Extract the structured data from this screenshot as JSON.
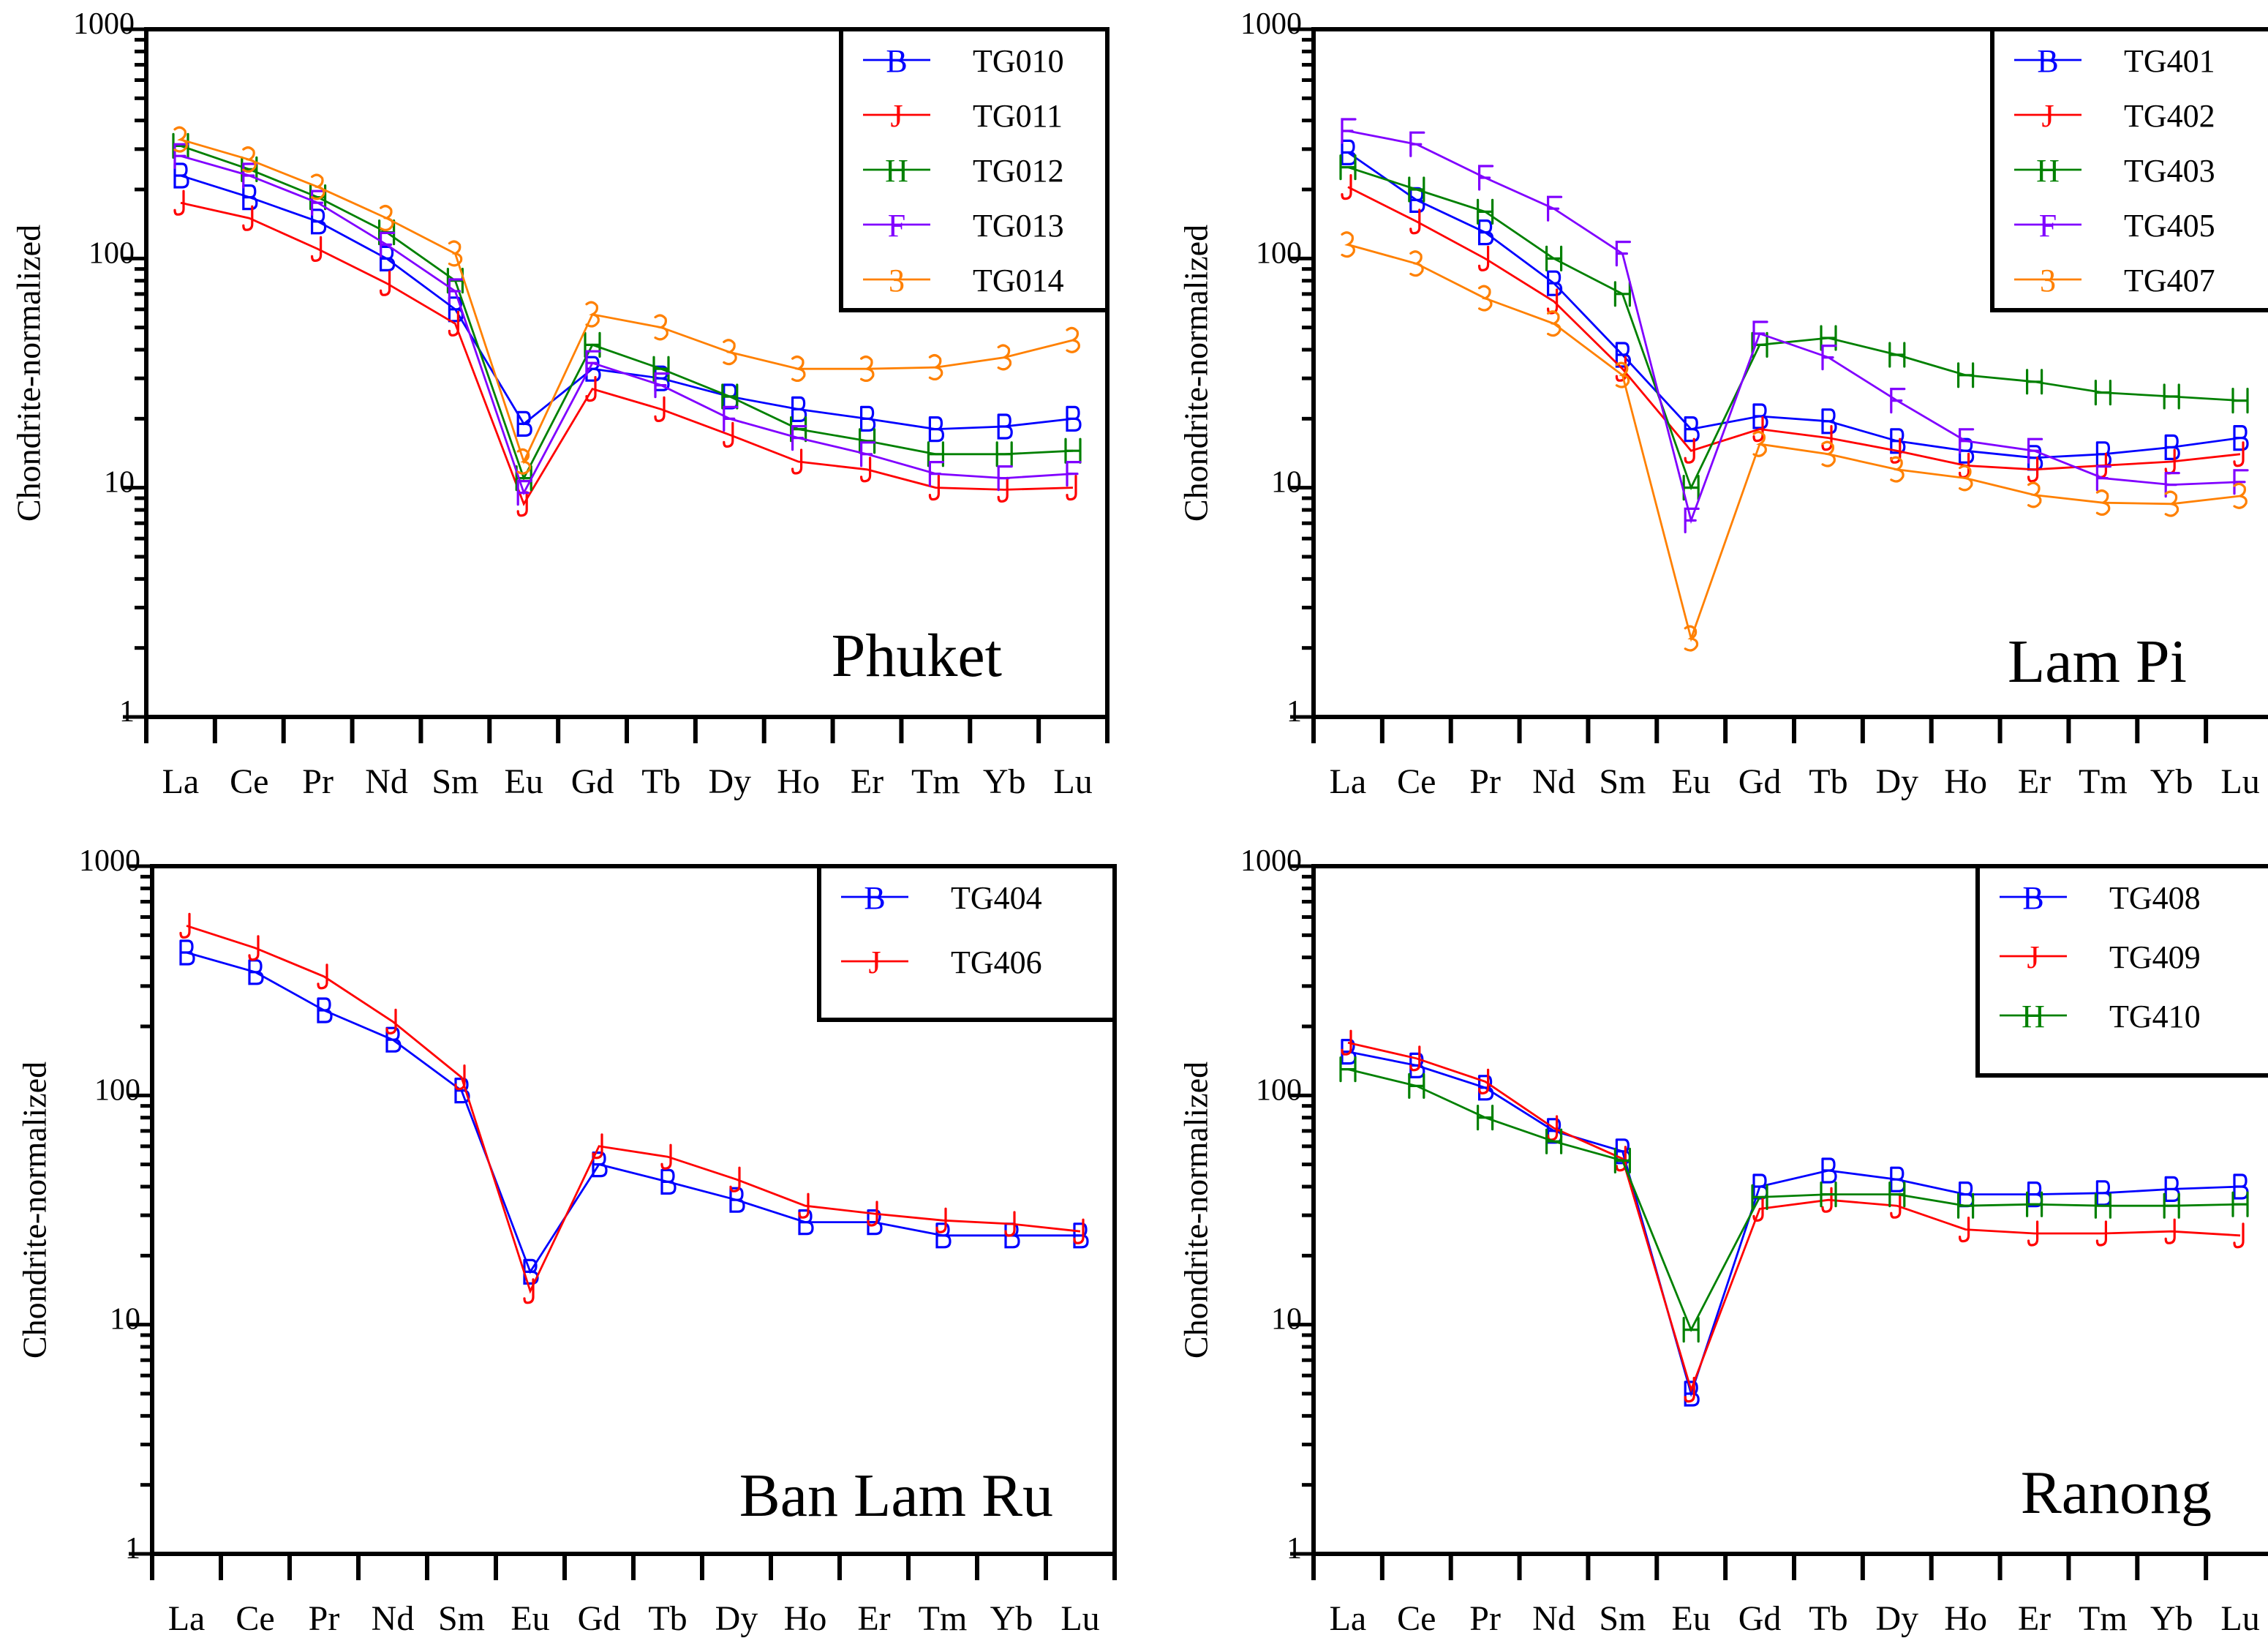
{
  "chart_data": [
    {
      "type": "line",
      "title": "Phuket",
      "ylabel": "Chondrite-normalized",
      "xlabel": "",
      "yscale": "log",
      "ylim": [
        1,
        1000
      ],
      "yticks": [
        "1",
        "10",
        "100",
        "1000"
      ],
      "legend_position": "top-right",
      "categories": [
        "La",
        "Ce",
        "Pr",
        "Nd",
        "Sm",
        "Eu",
        "Gd",
        "Tb",
        "Dy",
        "Ho",
        "Er",
        "Tm",
        "Yb",
        "Lu"
      ],
      "series": [
        {
          "name": "TG010",
          "marker": "B",
          "color": "#0000ff",
          "values": [
            230,
            185,
            145,
            100,
            60,
            19,
            33,
            30,
            25,
            22,
            20,
            18,
            18.5,
            20
          ]
        },
        {
          "name": "TG011",
          "marker": "J",
          "color": "#ff0000",
          "values": [
            175,
            150,
            110,
            78,
            52,
            8.5,
            27,
            22,
            17,
            13,
            12,
            10,
            9.8,
            10
          ]
        },
        {
          "name": "TG012",
          "marker": "H",
          "color": "#008000",
          "values": [
            310,
            245,
            185,
            130,
            80,
            11,
            42,
            33,
            25,
            18,
            16,
            14,
            14,
            14.5
          ]
        },
        {
          "name": "TG013",
          "marker": "F",
          "color": "#8000ff",
          "values": [
            280,
            230,
            175,
            115,
            72,
            9.5,
            35,
            28,
            20,
            16.5,
            14,
            11.5,
            11,
            11.5
          ]
        },
        {
          "name": "TG014",
          "marker": "3",
          "color": "#ff8000",
          "values": [
            330,
            270,
            205,
            150,
            105,
            13,
            57,
            50,
            39,
            33,
            33,
            33.5,
            37,
            44
          ]
        }
      ]
    },
    {
      "type": "line",
      "title": "Lam Pi",
      "ylabel": "Chondrite-normalized",
      "xlabel": "",
      "yscale": "log",
      "ylim": [
        1,
        1000
      ],
      "yticks": [
        "1",
        "10",
        "100",
        "1000"
      ],
      "legend_position": "top-right",
      "categories": [
        "La",
        "Ce",
        "Pr",
        "Nd",
        "Sm",
        "Eu",
        "Gd",
        "Tb",
        "Dy",
        "Ho",
        "Er",
        "Tm",
        "Yb",
        "Lu"
      ],
      "series": [
        {
          "name": "TG401",
          "marker": "B",
          "color": "#0000ff",
          "values": [
            290,
            180,
            130,
            78,
            38,
            18,
            20.5,
            19.5,
            16,
            14.5,
            13.5,
            14,
            15,
            16.5
          ]
        },
        {
          "name": "TG402",
          "marker": "J",
          "color": "#ff0000",
          "values": [
            205,
            145,
            100,
            65,
            33,
            14.5,
            18,
            16.5,
            14.5,
            12.5,
            12,
            12.5,
            13,
            14
          ]
        },
        {
          "name": "TG403",
          "marker": "H",
          "color": "#008000",
          "values": [
            250,
            200,
            160,
            100,
            70,
            10,
            42,
            45,
            38,
            31,
            29,
            26,
            25,
            24
          ]
        },
        {
          "name": "TG405",
          "marker": "F",
          "color": "#8000ff",
          "values": [
            360,
            315,
            225,
            165,
            105,
            7.2,
            47,
            37,
            24,
            16,
            14.5,
            11,
            10.3,
            10.6
          ]
        },
        {
          "name": "TG407",
          "marker": "3",
          "color": "#ff8000",
          "values": [
            115,
            95,
            67,
            52,
            31,
            2.2,
            15.5,
            14,
            12,
            11,
            9.3,
            8.6,
            8.5,
            9.2
          ]
        }
      ]
    },
    {
      "type": "line",
      "title": "Ban Lam Ru",
      "ylabel": "Chondrite-normalized",
      "xlabel": "",
      "yscale": "log",
      "ylim": [
        1,
        1000
      ],
      "yticks": [
        "1",
        "10",
        "100",
        "1000"
      ],
      "legend_position": "top-right",
      "categories": [
        "La",
        "Ce",
        "Pr",
        "Nd",
        "Sm",
        "Eu",
        "Gd",
        "Tb",
        "Dy",
        "Ho",
        "Er",
        "Tm",
        "Yb",
        "Lu"
      ],
      "series": [
        {
          "name": "TG404",
          "marker": "B",
          "color": "#0000ff",
          "values": [
            420,
            345,
            235,
            175,
            105,
            17,
            50,
            42,
            35,
            28,
            28,
            24.5,
            24.5,
            24.5
          ]
        },
        {
          "name": "TG406",
          "marker": "J",
          "color": "#ff0000",
          "values": [
            550,
            440,
            330,
            210,
            120,
            14,
            60,
            54,
            43,
            33,
            30.5,
            28.5,
            27.5,
            25.5
          ]
        }
      ]
    },
    {
      "type": "line",
      "title": "Ranong",
      "ylabel": "Chondrite-normalized",
      "xlabel": "",
      "yscale": "log",
      "ylim": [
        1,
        1000
      ],
      "yticks": [
        "1",
        "10",
        "100",
        "1000"
      ],
      "legend_position": "top-right",
      "categories": [
        "La",
        "Ce",
        "Pr",
        "Nd",
        "Sm",
        "Eu",
        "Gd",
        "Tb",
        "Dy",
        "Ho",
        "Er",
        "Tm",
        "Yb",
        "Lu"
      ],
      "series": [
        {
          "name": "TG408",
          "marker": "B",
          "color": "#0000ff",
          "values": [
            155,
            135,
            108,
            70,
            57,
            5,
            40,
            47,
            43,
            37,
            37,
            37.5,
            39,
            40
          ]
        },
        {
          "name": "TG409",
          "marker": "J",
          "color": "#ff0000",
          "values": [
            170,
            145,
            115,
            72,
            53,
            5.2,
            32,
            35,
            33,
            26,
            25,
            25,
            25.5,
            24.5
          ]
        },
        {
          "name": "TG410",
          "marker": "H",
          "color": "#008000",
          "values": [
            130,
            110,
            80,
            63,
            52,
            9.5,
            36,
            37,
            37,
            33,
            33.5,
            33,
            33,
            33.5
          ]
        }
      ]
    }
  ]
}
